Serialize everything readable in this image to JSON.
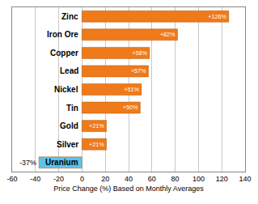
{
  "chart_data": {
    "type": "bar",
    "orientation": "horizontal",
    "x_label": "Price Change (%) Based on Monthly Averages",
    "categories": [
      "Zinc",
      "Iron Ore",
      "Copper",
      "Lead",
      "Nickel",
      "Tin",
      "Gold",
      "Silver",
      "Uranium"
    ],
    "values": [
      126,
      82,
      58,
      57,
      51,
      50,
      21,
      21,
      -37
    ],
    "value_labels": [
      "+126%",
      "+82%",
      "+58%",
      "+57%",
      "+51%",
      "+50%",
      "+21%",
      "+21%",
      "-37%"
    ],
    "colors": [
      "#ef7a1a",
      "#ef7a1a",
      "#ef7a1a",
      "#ef7a1a",
      "#ef7a1a",
      "#ef7a1a",
      "#ef7a1a",
      "#ef7a1a",
      "#5cc3ea"
    ],
    "xlim": [
      -60,
      140
    ],
    "xticks": [
      -60,
      -40,
      -20,
      0,
      20,
      40,
      60,
      80,
      100,
      120,
      140
    ],
    "grid": true,
    "data_labels": true,
    "tick_labels": "x"
  }
}
